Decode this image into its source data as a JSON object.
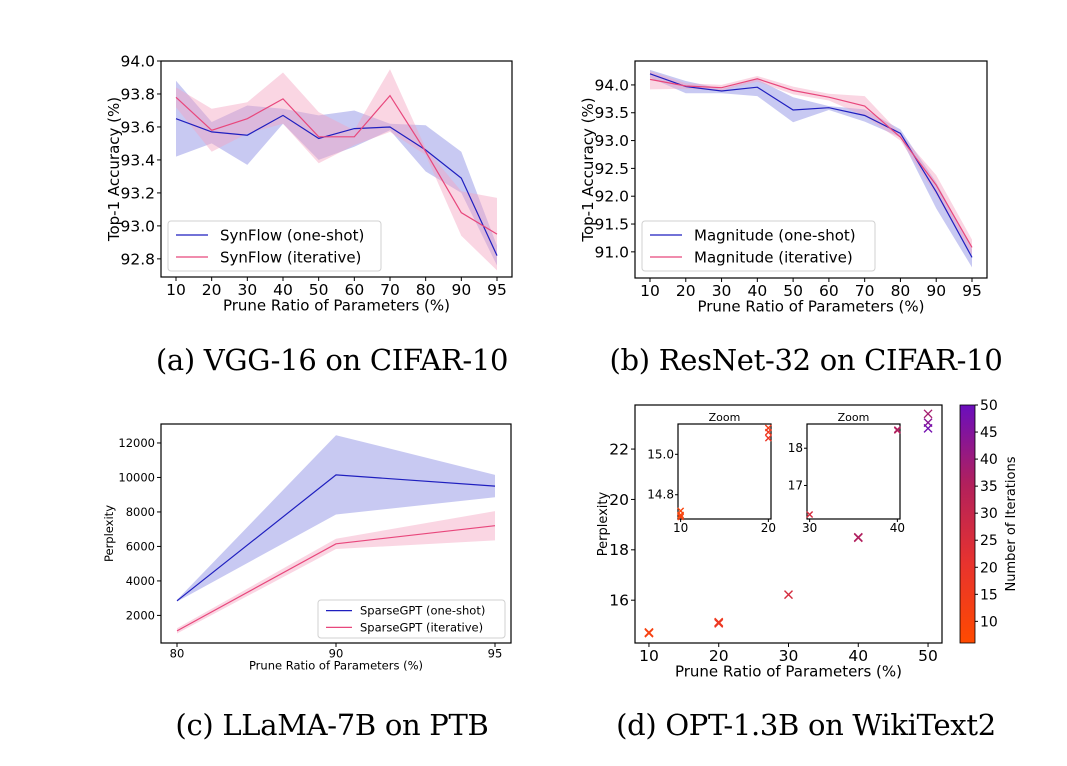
{
  "chart_data": [
    {
      "id": "a",
      "type": "line",
      "caption": "(a) VGG-16 on CIFAR-10",
      "xlabel": "Prune Ratio of Parameters (%)",
      "ylabel": "Top-1 Accuracy (%)",
      "x_categorical": true,
      "categories": [
        "10",
        "20",
        "30",
        "40",
        "50",
        "60",
        "70",
        "80",
        "90",
        "95"
      ],
      "ylim": [
        92.69,
        94.0
      ],
      "yticks": [
        "92.8",
        "93.0",
        "93.2",
        "93.4",
        "93.6",
        "93.8",
        "94.0"
      ],
      "legend_position": "lower-left",
      "series": [
        {
          "name": "SynFlow (one-shot)",
          "color": "#1f1fbf",
          "fill": "#7b7fe0",
          "values": [
            93.65,
            93.57,
            93.55,
            93.67,
            93.53,
            93.59,
            93.6,
            93.46,
            93.29,
            92.82
          ],
          "upper": [
            93.88,
            93.63,
            93.73,
            93.71,
            93.67,
            93.7,
            93.62,
            93.61,
            93.45,
            92.88
          ],
          "lower": [
            93.42,
            93.5,
            93.37,
            93.62,
            93.4,
            93.48,
            93.58,
            93.33,
            93.2,
            92.76
          ]
        },
        {
          "name": "SynFlow (iterative)",
          "color": "#e8477c",
          "fill": "#f4a3c0",
          "values": [
            93.78,
            93.58,
            93.65,
            93.77,
            93.54,
            93.54,
            93.79,
            93.45,
            93.08,
            92.95
          ],
          "upper": [
            93.84,
            93.71,
            93.75,
            93.93,
            93.69,
            93.58,
            93.95,
            93.47,
            93.21,
            93.17
          ],
          "lower": [
            93.72,
            93.45,
            93.56,
            93.62,
            93.38,
            93.49,
            93.57,
            93.43,
            92.94,
            92.73
          ]
        }
      ]
    },
    {
      "id": "b",
      "type": "line",
      "caption": "(b) ResNet-32 on CIFAR-10",
      "xlabel": "Prune Ratio of Parameters (%)",
      "ylabel": "Top-1 Accuracy (%)",
      "x_categorical": true,
      "categories": [
        "10",
        "20",
        "30",
        "40",
        "50",
        "60",
        "70",
        "80",
        "90",
        "95"
      ],
      "ylim": [
        90.53,
        94.43
      ],
      "yticks": [
        "91.0",
        "91.5",
        "92.0",
        "92.5",
        "93.0",
        "93.5",
        "94.0"
      ],
      "legend_position": "lower-left",
      "series": [
        {
          "name": "Magnitude (one-shot)",
          "color": "#1f1fbf",
          "fill": "#7b7fe0",
          "values": [
            94.2,
            93.97,
            93.89,
            93.96,
            93.55,
            93.59,
            93.45,
            93.13,
            92.08,
            90.9
          ],
          "upper": [
            94.27,
            94.07,
            93.93,
            94.1,
            93.78,
            93.62,
            93.56,
            93.2,
            92.25,
            91.05
          ],
          "lower": [
            94.13,
            93.85,
            93.85,
            93.8,
            93.33,
            93.55,
            93.34,
            93.06,
            91.78,
            90.72
          ]
        },
        {
          "name": "Magnitude (iterative)",
          "color": "#e8477c",
          "fill": "#f4a3c0",
          "values": [
            94.1,
            93.98,
            93.95,
            94.11,
            93.9,
            93.78,
            93.62,
            93.06,
            92.2,
            91.08
          ],
          "upper": [
            94.25,
            94.03,
            94.0,
            94.16,
            93.97,
            93.84,
            93.8,
            93.12,
            92.38,
            91.22
          ],
          "lower": [
            93.92,
            93.93,
            93.9,
            94.06,
            93.83,
            93.72,
            93.44,
            93.0,
            92.02,
            90.94
          ]
        }
      ]
    },
    {
      "id": "c",
      "type": "line",
      "caption": "(c) LLaMA-7B on PTB",
      "xlabel": "Prune Ratio of Parameters (%)",
      "ylabel": "Perplexity",
      "x_categorical": true,
      "categories": [
        "80",
        "90",
        "95"
      ],
      "ylim": [
        400,
        13100
      ],
      "yticks": [
        "2000",
        "4000",
        "6000",
        "8000",
        "10000",
        "12000"
      ],
      "legend_position": "lower-right",
      "series": [
        {
          "name": "SparseGPT (one-shot)",
          "color": "#1f1fbf",
          "fill": "#7b7fe0",
          "values": [
            2850,
            10150,
            9500
          ],
          "upper": [
            2900,
            12450,
            10150
          ],
          "lower": [
            2800,
            7850,
            8850
          ]
        },
        {
          "name": "SparseGPT (iterative)",
          "color": "#e8477c",
          "fill": "#f4a3c0",
          "values": [
            1100,
            6150,
            7200
          ],
          "upper": [
            1250,
            6450,
            8050
          ],
          "lower": [
            950,
            5850,
            6350
          ]
        }
      ]
    },
    {
      "id": "d",
      "type": "scatter",
      "caption": "(d) OPT-1.3B on WikiText2",
      "xlabel": "Prune Ratio of Parameters (%)",
      "ylabel": "Perplexity",
      "xlim": [
        8,
        52
      ],
      "ylim": [
        14.3,
        23.75
      ],
      "xticks": [
        "10",
        "20",
        "30",
        "40",
        "50"
      ],
      "yticks": [
        "16",
        "18",
        "20",
        "22"
      ],
      "marker": "x",
      "colorbar": {
        "label": "Number of Iterations",
        "range": [
          6,
          50
        ],
        "ticks": [
          "10",
          "15",
          "20",
          "25",
          "30",
          "35",
          "40",
          "45",
          "50"
        ],
        "colors": [
          "#ff4a00",
          "#e8332e",
          "#b2205c",
          "#6a0ebd"
        ]
      },
      "points": [
        {
          "x": 10,
          "y": 14.7,
          "c": 8
        },
        {
          "x": 10,
          "y": 14.72,
          "c": 10
        },
        {
          "x": 10,
          "y": 14.69,
          "c": 12
        },
        {
          "x": 20,
          "y": 15.13,
          "c": 14
        },
        {
          "x": 20,
          "y": 15.11,
          "c": 16
        },
        {
          "x": 20,
          "y": 15.08,
          "c": 18
        },
        {
          "x": 30,
          "y": 16.22,
          "c": 26
        },
        {
          "x": 40,
          "y": 18.48,
          "c": 34
        },
        {
          "x": 40,
          "y": 18.5,
          "c": 36
        },
        {
          "x": 50,
          "y": 23.4,
          "c": 38
        },
        {
          "x": 50,
          "y": 23.05,
          "c": 44
        },
        {
          "x": 50,
          "y": 22.82,
          "c": 48
        }
      ],
      "insets": [
        {
          "title": "Zoom",
          "xlim": [
            9.7,
            20.3
          ],
          "ylim": [
            14.68,
            15.15
          ],
          "xticks": [
            "10",
            "20"
          ],
          "yticks": [
            "14.8",
            "15.0"
          ],
          "xrange": [
            10,
            20
          ]
        },
        {
          "title": "Zoom",
          "xlim": [
            29.7,
            40.3
          ],
          "ylim": [
            16.1,
            18.65
          ],
          "xticks": [
            "30",
            "40"
          ],
          "yticks": [
            "17",
            "18"
          ],
          "xrange": [
            30,
            40
          ]
        }
      ]
    }
  ]
}
